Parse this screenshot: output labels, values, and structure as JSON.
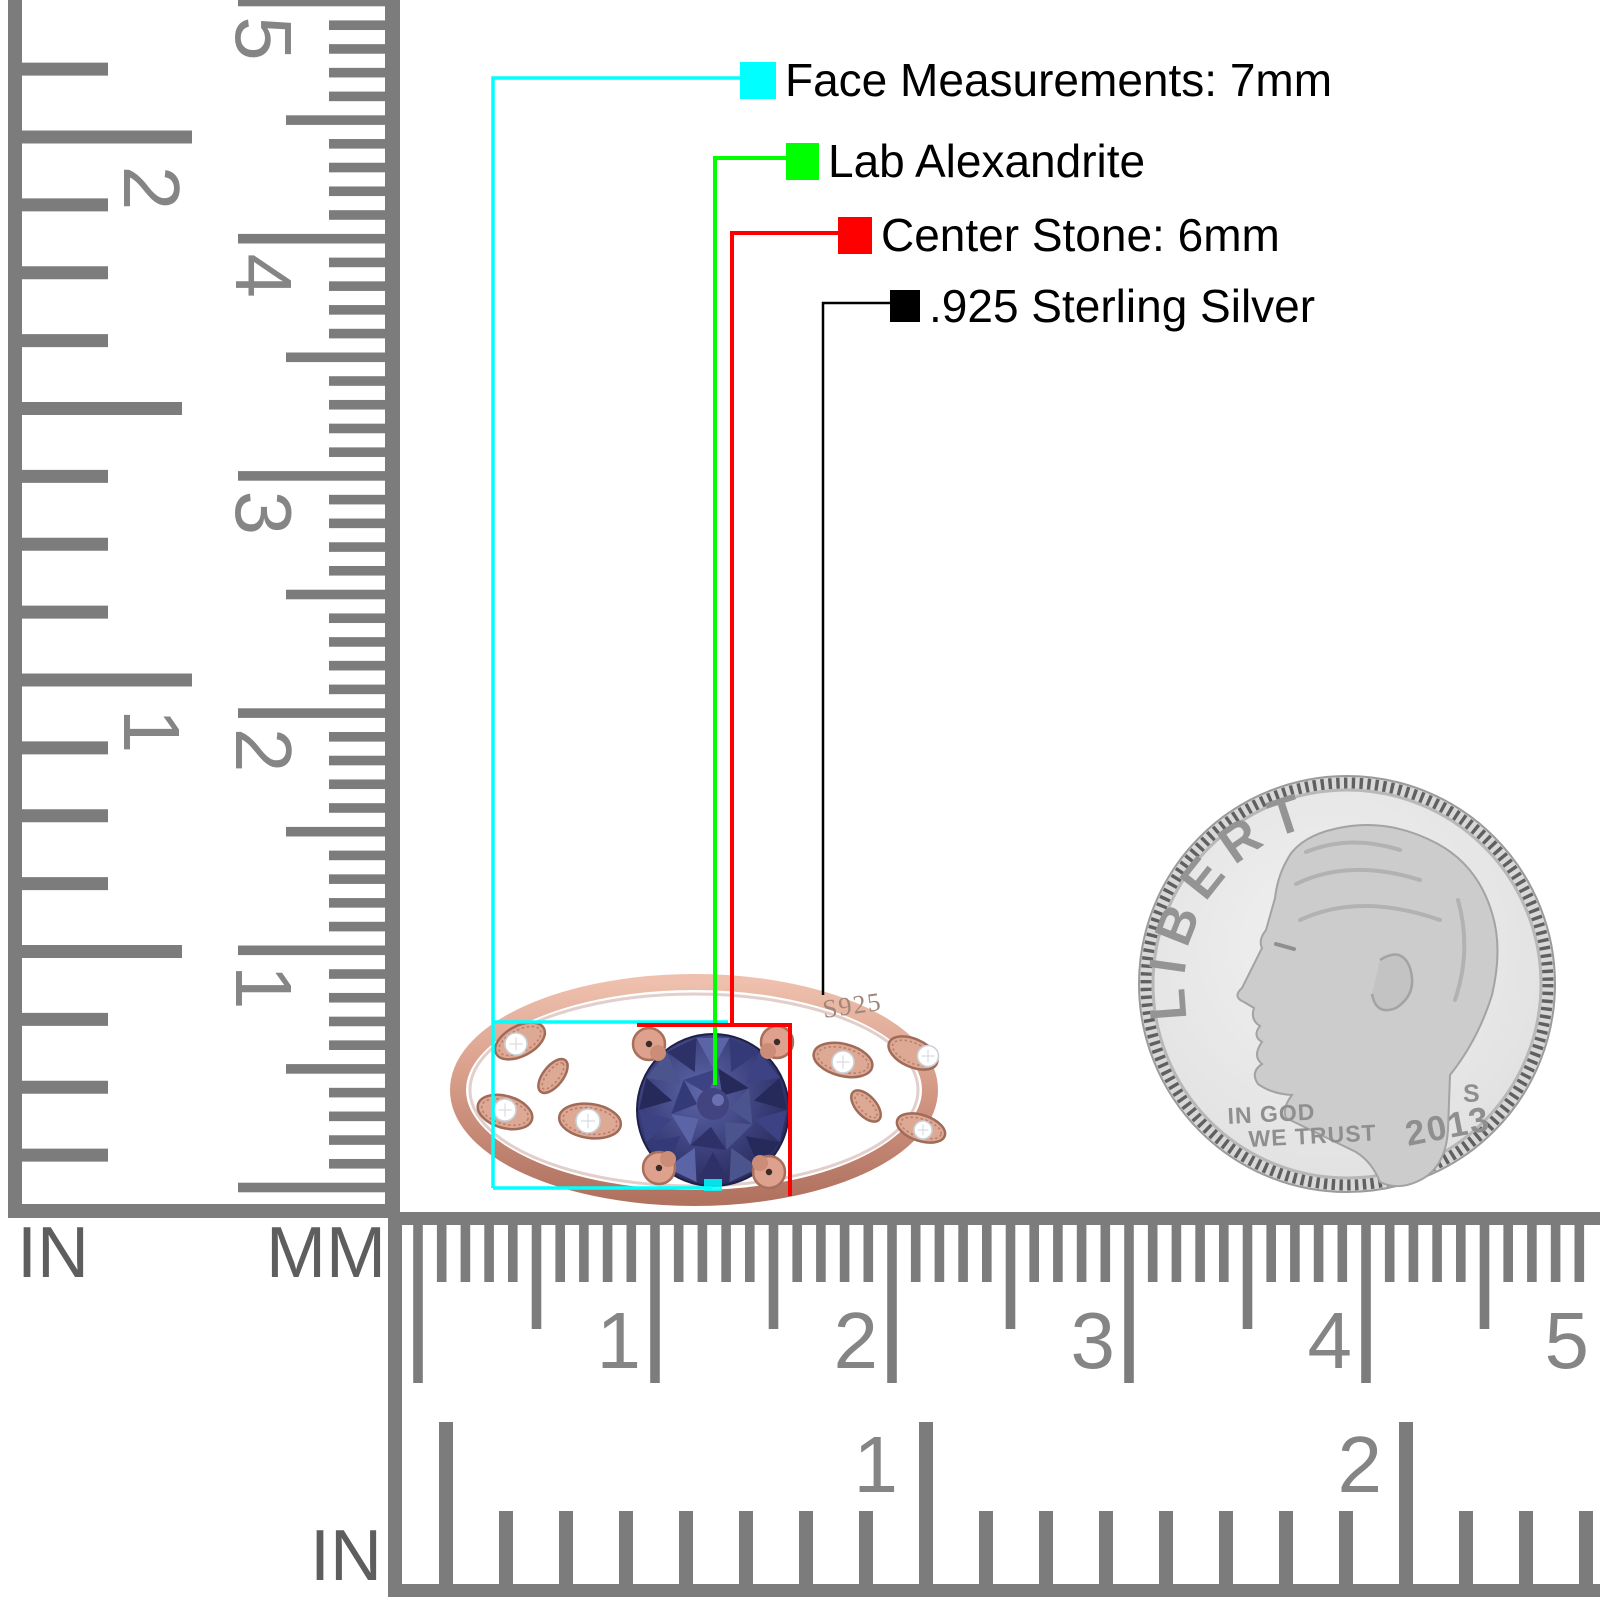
{
  "page": {
    "background": "#ffffff"
  },
  "annotations": [
    {
      "id": "face",
      "swatch": "#00ffff",
      "label": "Face Measurements: 7mm"
    },
    {
      "id": "stone_type",
      "swatch": "#00ff00",
      "label": "Lab Alexandrite"
    },
    {
      "id": "center_stone",
      "swatch": "#ff0000",
      "label": "Center Stone: 6mm"
    },
    {
      "id": "metal",
      "swatch": "#000000",
      "label": ".925 Sterling Silver"
    }
  ],
  "ring": {
    "engraving": "S925",
    "band_color": "#d59c88",
    "stone_color": "#3a3e79",
    "accent_stone_color": "#ffffff"
  },
  "coin": {
    "top_text": "LIBERTY",
    "motto_line1": "IN GOD",
    "motto_line2": "WE TRUST",
    "mint_mark": "S",
    "year": "2013"
  },
  "rulers": {
    "left_inch": {
      "unit": "IN",
      "numbers": [
        "2",
        "1"
      ]
    },
    "left_mm": {
      "unit": "MM",
      "numbers": [
        "5",
        "4",
        "3",
        "2",
        "1"
      ]
    },
    "bottom_mm": {
      "numbers": [
        "1",
        "2",
        "3",
        "4",
        "5"
      ]
    },
    "bottom_inch": {
      "unit": "IN",
      "numbers": [
        "1",
        "2"
      ]
    },
    "tick_color": "#7c7c7c",
    "number_color": "#858585",
    "unit_color": "#5e5e5e"
  }
}
